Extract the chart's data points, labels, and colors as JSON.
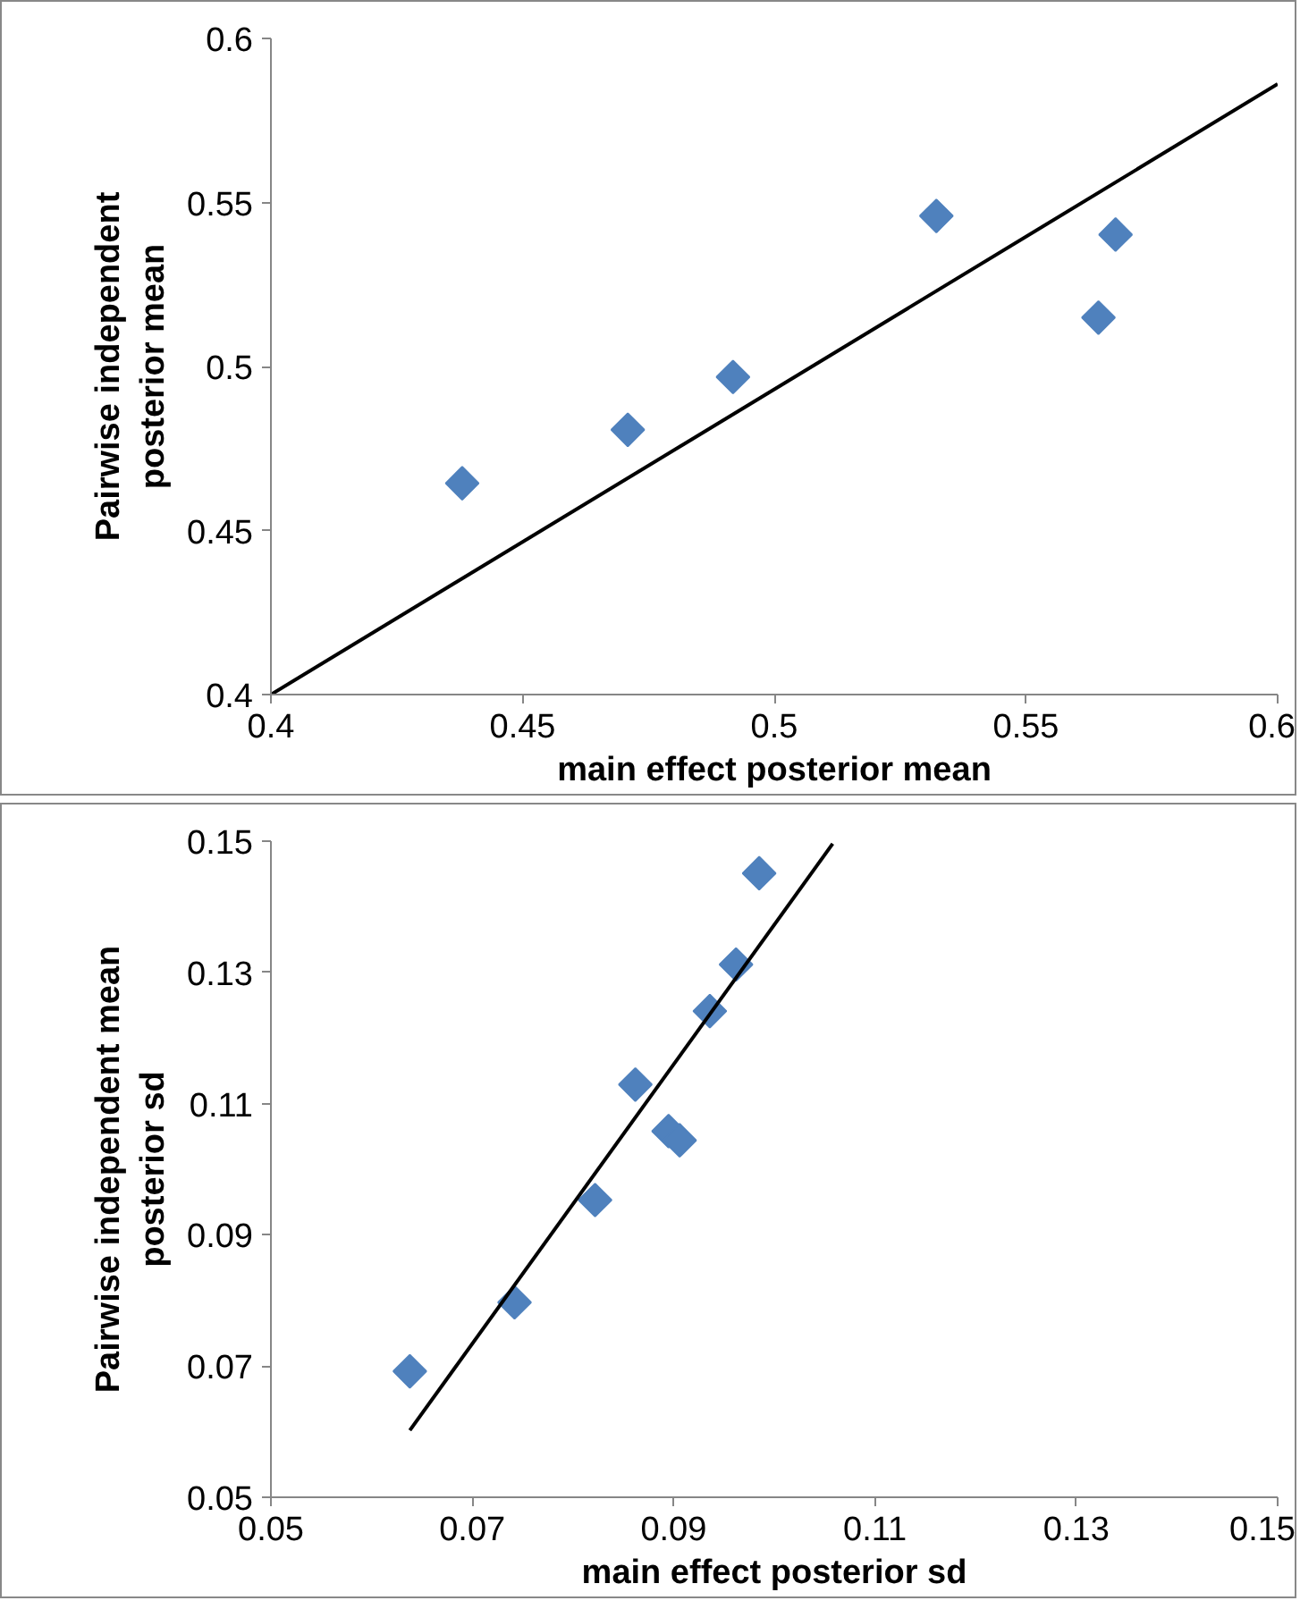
{
  "chart_data": [
    {
      "type": "scatter",
      "xlabel": "main effect posterior mean",
      "ylabel": "Pairwise independent posterior mean",
      "xlim": [
        0.4,
        0.6
      ],
      "ylim": [
        0.4,
        0.6
      ],
      "xticks": [
        0.4,
        0.45,
        0.5,
        0.55,
        0.6
      ],
      "yticks": [
        0.4,
        0.45,
        0.5,
        0.55,
        0.6
      ],
      "grid": false,
      "series": [
        {
          "color": "#4f81bd",
          "marker": "diamond",
          "x": [
            0.438,
            0.4709,
            0.4918,
            0.5322,
            0.5644,
            0.5678
          ],
          "values": [
            0.4644,
            0.4807,
            0.4968,
            0.5459,
            0.5149,
            0.5402
          ]
        },
        {
          "type": "line",
          "color": "#000000",
          "x": [
            0.4,
            0.6
          ],
          "values": [
            0.4,
            0.5861
          ]
        }
      ]
    },
    {
      "type": "scatter",
      "xlabel": "main effect posterior sd",
      "ylabel": "Pairwise independent mean posterior sd",
      "xlim": [
        0.05,
        0.15
      ],
      "ylim": [
        0.05,
        0.15
      ],
      "xticks": [
        0.05,
        0.07,
        0.09,
        0.11,
        0.13,
        0.15
      ],
      "yticks": [
        0.05,
        0.07,
        0.09,
        0.11,
        0.13,
        0.15
      ],
      "grid": false,
      "series": [
        {
          "color": "#4f81bd",
          "marker": "diamond",
          "x": [
            0.0638,
            0.0742,
            0.0822,
            0.0862,
            0.0895,
            0.0906,
            0.0936,
            0.0962,
            0.0985
          ],
          "values": [
            0.0692,
            0.0797,
            0.0953,
            0.1129,
            0.1058,
            0.1044,
            0.1241,
            0.1312,
            0.1451
          ]
        },
        {
          "type": "line",
          "color": "#000000",
          "x": [
            0.0638,
            0.1058
          ],
          "values": [
            0.0602,
            0.1496
          ]
        }
      ]
    }
  ]
}
